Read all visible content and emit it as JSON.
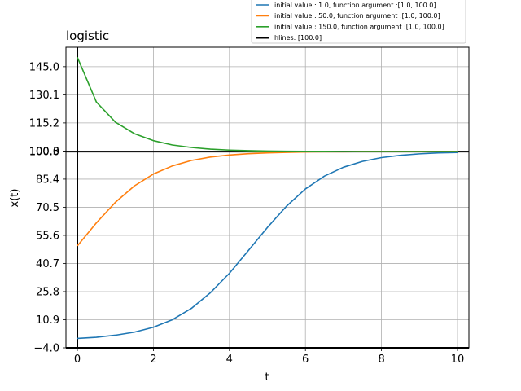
{
  "chart_data": {
    "type": "line",
    "title": "logistic",
    "xlabel": "t",
    "ylabel": "x(t)",
    "xlim": [
      -0.3,
      10.3
    ],
    "ylim": [
      -4.0,
      155.3
    ],
    "grid": true,
    "legend_placement": "top-right",
    "x_ticks": [
      0,
      2,
      4,
      6,
      8,
      10
    ],
    "x_tick_labels": [
      "0",
      "2",
      "4",
      "6",
      "8",
      "10"
    ],
    "y_ticks": [
      -4.0,
      10.9,
      25.8,
      40.7,
      55.6,
      70.5,
      85.4,
      100.0,
      100.3,
      115.2,
      130.1,
      145.0
    ],
    "y_tick_labels": [
      "−4.0",
      "10.9",
      "25.8",
      "40.7",
      "55.6",
      "70.5",
      "85.4",
      "100.0",
      "100.3",
      "115.2",
      "130.1",
      "145.0"
    ],
    "x": [
      0,
      0.5,
      1,
      1.5,
      2,
      2.5,
      3,
      3.5,
      4,
      4.5,
      5,
      5.5,
      6,
      6.5,
      7,
      7.5,
      8,
      8.5,
      9,
      9.5,
      10
    ],
    "series": [
      {
        "name": "initial value :        1.0, function argument :[1.0, 100.0]",
        "color": "#1f77b4",
        "values": [
          1.0,
          1.6,
          2.7,
          4.3,
          6.9,
          10.9,
          16.9,
          25.2,
          35.5,
          47.6,
          59.8,
          71.0,
          80.2,
          87.0,
          91.7,
          94.8,
          96.8,
          98.0,
          98.8,
          99.3,
          99.5
        ]
      },
      {
        "name": "initial value :       50.0, function argument :[1.0, 100.0]",
        "color": "#ff7f0e",
        "values": [
          50.0,
          62.2,
          73.1,
          81.8,
          88.1,
          92.4,
          95.3,
          97.1,
          98.2,
          98.9,
          99.3,
          99.6,
          99.8,
          99.9,
          99.9,
          100.0,
          100.0,
          100.0,
          100.0,
          100.0,
          100.0
        ]
      },
      {
        "name": "initial value :      150.0, function argument :[1.0, 100.0]",
        "color": "#2ca02c",
        "values": [
          150.0,
          126.3,
          115.6,
          109.5,
          105.8,
          103.5,
          102.2,
          101.3,
          100.8,
          100.5,
          100.3,
          100.2,
          100.1,
          100.1,
          100.0,
          100.0,
          100.0,
          100.0,
          100.0,
          100.0,
          100.0
        ]
      }
    ],
    "hlines": {
      "name": "hlines: [100.0]",
      "values": [
        100.0,
        -4.0
      ],
      "color": "#000000"
    },
    "vlines": {
      "values": [
        0
      ],
      "color": "#000000"
    }
  }
}
